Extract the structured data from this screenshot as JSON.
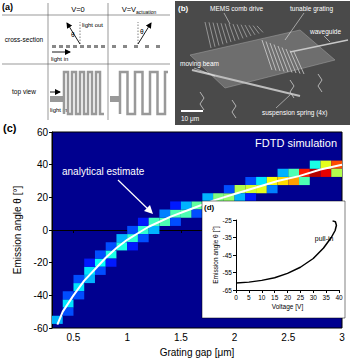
{
  "panel_a": {
    "label": "(a)",
    "columns": [
      {
        "text": "V=0"
      },
      {
        "text": "V=V",
        "subscript": "actuation"
      }
    ],
    "rows": [
      "cross-section",
      "top view"
    ],
    "annotations": {
      "light_in": "light in",
      "light_out": "light out",
      "angle": "θ"
    }
  },
  "panel_b": {
    "label": "(b)",
    "annotations": [
      "MEMS comb drive",
      "tunable grating",
      "waveguide",
      "moving beam",
      "suspension spring (4x)"
    ],
    "scale_bar": "10 μm"
  },
  "chart_data": [
    {
      "type": "heatmap",
      "label": "(c)",
      "title": "FDTD simulation",
      "xlabel": "Grating gap [μm]",
      "ylabel": "Emission angle θ [°]",
      "xlim": [
        0.3,
        3
      ],
      "xticks": [
        0.5,
        1,
        1.5,
        2,
        2.5,
        3
      ],
      "ylim": [
        -60,
        60
      ],
      "yticks": [
        -60,
        -40,
        -20,
        0,
        20,
        40,
        60
      ],
      "grid": false,
      "cell_width": 0.1,
      "cell_height": 5,
      "color_range": [
        0,
        1
      ],
      "cells": [
        [
          0.35,
          -55,
          0.3
        ],
        [
          0.45,
          -45,
          0.35
        ],
        [
          0.45,
          -50,
          0.2
        ],
        [
          0.45,
          -40,
          0.2
        ],
        [
          0.55,
          -35,
          0.35
        ],
        [
          0.55,
          -40,
          0.2
        ],
        [
          0.55,
          -30,
          0.2
        ],
        [
          0.65,
          -25,
          0.35
        ],
        [
          0.65,
          -30,
          0.3
        ],
        [
          0.65,
          -20,
          0.15
        ],
        [
          0.75,
          -20,
          0.38
        ],
        [
          0.75,
          -25,
          0.2
        ],
        [
          0.75,
          -15,
          0.2
        ],
        [
          0.85,
          -15,
          0.4
        ],
        [
          0.85,
          -10,
          0.2
        ],
        [
          0.85,
          -20,
          0.15
        ],
        [
          0.95,
          -10,
          0.4
        ],
        [
          0.95,
          -5,
          0.3
        ],
        [
          1.05,
          -5,
          0.42
        ],
        [
          1.05,
          0,
          0.2
        ],
        [
          1.05,
          -10,
          0.15
        ],
        [
          1.15,
          0,
          0.42
        ],
        [
          1.15,
          -5,
          0.2
        ],
        [
          1.15,
          5,
          0.15
        ],
        [
          1.25,
          5,
          0.44
        ],
        [
          1.25,
          0,
          0.3
        ],
        [
          1.35,
          5,
          0.45
        ],
        [
          1.35,
          10,
          0.25
        ],
        [
          1.45,
          10,
          0.45
        ],
        [
          1.45,
          5,
          0.2
        ],
        [
          1.45,
          15,
          0.15
        ],
        [
          1.55,
          10,
          0.45
        ],
        [
          1.55,
          15,
          0.3
        ],
        [
          1.65,
          15,
          0.47
        ],
        [
          1.65,
          10,
          0.2
        ],
        [
          1.75,
          15,
          0.48
        ],
        [
          1.75,
          20,
          0.3
        ],
        [
          1.85,
          20,
          0.5
        ],
        [
          1.85,
          15,
          0.25
        ],
        [
          1.95,
          20,
          0.52
        ],
        [
          1.95,
          25,
          0.2
        ],
        [
          2.05,
          25,
          0.55
        ],
        [
          2.05,
          20,
          0.3
        ],
        [
          2.15,
          25,
          0.58
        ],
        [
          2.15,
          30,
          0.2
        ],
        [
          2.15,
          20,
          0.15
        ],
        [
          2.25,
          25,
          0.6
        ],
        [
          2.25,
          30,
          0.35
        ],
        [
          2.35,
          30,
          0.62
        ],
        [
          2.35,
          25,
          0.25
        ],
        [
          2.45,
          30,
          0.66
        ],
        [
          2.45,
          35,
          0.3
        ],
        [
          2.55,
          30,
          0.72
        ],
        [
          2.55,
          35,
          0.45
        ],
        [
          2.65,
          35,
          0.85
        ],
        [
          2.65,
          30,
          0.45
        ],
        [
          2.75,
          35,
          0.95
        ],
        [
          2.75,
          40,
          0.4
        ],
        [
          2.85,
          35,
          0.9
        ],
        [
          2.85,
          40,
          0.6
        ],
        [
          2.95,
          40,
          0.8
        ],
        [
          2.95,
          35,
          0.55
        ]
      ],
      "series": [
        {
          "name": "analytical estimate",
          "type": "line",
          "color": "#ffffff",
          "x": [
            0.35,
            0.4,
            0.5,
            0.6,
            0.7,
            0.8,
            0.9,
            1.0,
            1.1,
            1.2,
            1.4,
            1.6,
            1.8,
            2.0,
            2.2,
            2.4,
            2.6,
            2.8,
            3.0
          ],
          "values": [
            -58,
            -50,
            -40,
            -31,
            -24,
            -17,
            -11,
            -6,
            -2,
            2,
            8,
            13,
            18,
            22,
            26,
            30,
            33,
            37,
            40
          ]
        }
      ]
    },
    {
      "type": "line",
      "label": "(d)",
      "xlabel": "Voltage [V]",
      "ylabel": "Emission angle θ [°]",
      "xlim": [
        0,
        40
      ],
      "xticks": [
        0,
        5,
        10,
        15,
        20,
        25,
        30,
        35,
        40
      ],
      "ylim": [
        -65,
        -25
      ],
      "yticks": [
        -65,
        -55,
        -45,
        -35,
        -25
      ],
      "grid": false,
      "series": [
        {
          "color": "#000000",
          "x": [
            0,
            5,
            10,
            15,
            20,
            25,
            30,
            34,
            37,
            38.5,
            39,
            38.6,
            37.5
          ],
          "values": [
            -61,
            -60.5,
            -59.5,
            -58,
            -55.5,
            -52,
            -47,
            -41,
            -35,
            -31,
            -28,
            -26,
            -25.5
          ]
        }
      ],
      "annotation": "pull-in",
      "pull_in": {
        "x": 39,
        "y": -31
      }
    }
  ]
}
